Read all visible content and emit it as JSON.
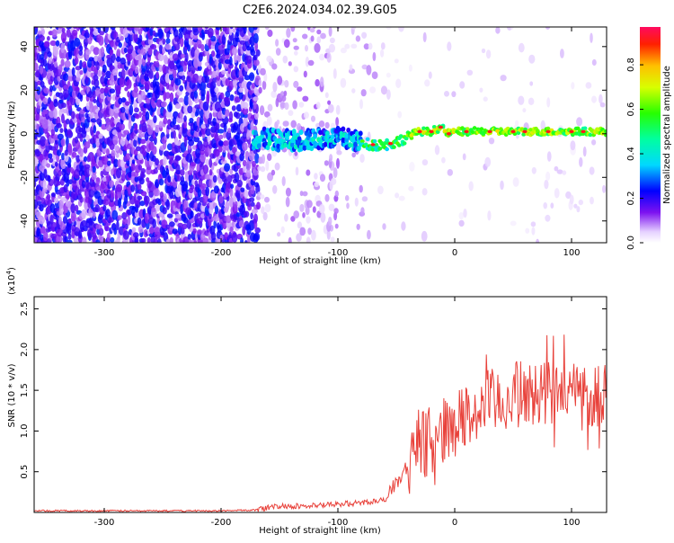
{
  "title": "C2E6.2024.034.02.39.G05",
  "chart_data": [
    {
      "type": "heatmap",
      "xlabel": "Height of straight line (km)",
      "ylabel": "Frequency (Hz)",
      "xlim": [
        -360,
        130
      ],
      "ylim": [
        -50,
        49
      ],
      "x_ticks": [
        -300,
        -200,
        -100,
        0,
        100
      ],
      "y_ticks": [
        -40,
        -20,
        0,
        20,
        40
      ],
      "colorbar": {
        "label": "Normalized spectral amplitude",
        "range": [
          0,
          0.97
        ],
        "ticks": [
          "0.0",
          "0.2",
          "0.4",
          "0.6",
          "0.8"
        ],
        "tick_values": [
          0,
          0.2,
          0.4,
          0.6,
          0.8
        ]
      },
      "ridge": {
        "x": [
          -170,
          -150,
          -130,
          -110,
          -95,
          -80,
          -70,
          -60,
          -50,
          -40,
          -30,
          -20,
          -12,
          -5,
          0,
          20,
          40,
          60,
          80,
          100,
          120,
          130
        ],
        "y": [
          -2,
          -3,
          -3,
          -2,
          -2,
          -4,
          -5,
          -5,
          -4,
          -1,
          1,
          1,
          3,
          0,
          1,
          1,
          1,
          1,
          1,
          1,
          1,
          1
        ]
      },
      "grid": false
    },
    {
      "type": "line",
      "xlabel": "Height of straight line (km)",
      "ylabel": "SNR (10 * v/v)",
      "y_multiplier": "(x10^4)",
      "xlim": [
        -360,
        130
      ],
      "ylim": [
        0,
        2.65
      ],
      "x_ticks": [
        -300,
        -200,
        -100,
        0,
        100
      ],
      "y_ticks": [
        0.5,
        1.0,
        1.5,
        2.0,
        2.5
      ],
      "series": [
        {
          "color": "#e8413a",
          "x": [
            -360,
            -300,
            -250,
            -200,
            -170,
            -150,
            -120,
            -100,
            -80,
            -60,
            -50,
            -40,
            -30,
            -20,
            -10,
            0,
            10,
            20,
            30,
            40,
            50,
            60,
            70,
            80,
            90,
            100,
            110,
            120,
            128
          ],
          "y": [
            0.02,
            0.02,
            0.02,
            0.02,
            0.03,
            0.08,
            0.08,
            0.1,
            0.12,
            0.15,
            0.35,
            0.6,
            0.8,
            0.9,
            1.0,
            1.1,
            1.15,
            1.25,
            1.35,
            1.35,
            1.45,
            1.45,
            1.45,
            1.5,
            1.4,
            1.5,
            1.45,
            1.45,
            1.5
          ]
        }
      ],
      "grid": false
    }
  ]
}
